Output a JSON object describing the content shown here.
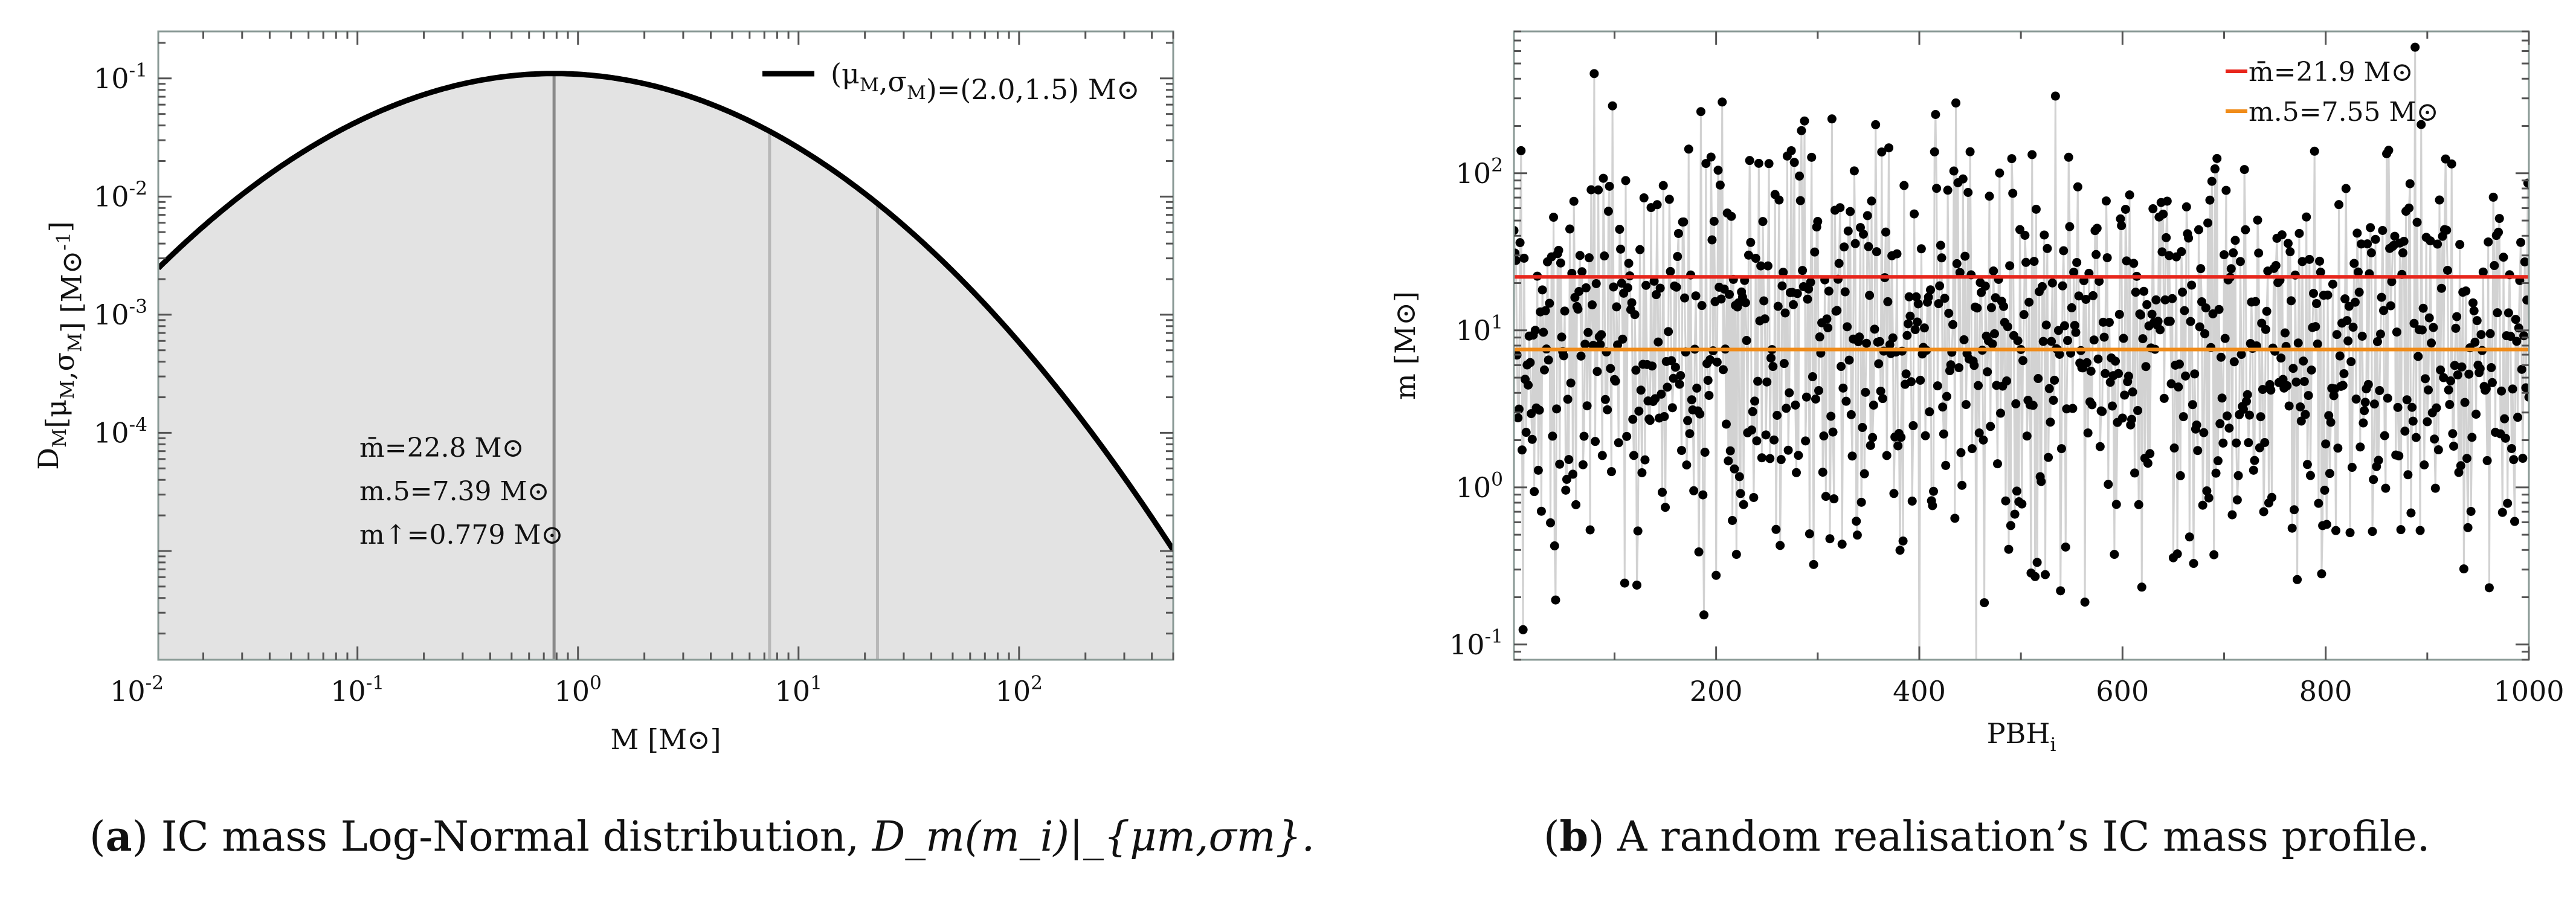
{
  "chart_data": [
    {
      "type": "area",
      "panel_label": "a",
      "caption": "IC mass Log-Normal distribution,",
      "caption_math": "D_m(m_i)|_{μm,σm}.",
      "xscale": "log",
      "yscale": "log",
      "xlim": [
        0.0125,
        500
      ],
      "ylim": [
        1.2e-06,
        0.25
      ],
      "xlabel": "M [M⊙]",
      "ylabel": "D_M[μ_M,σ_M] [M⊙^-1]",
      "xticks": [
        0.01,
        0.1,
        1,
        10,
        100
      ],
      "xtick_labels": [
        "10^-2",
        "10^-1",
        "10^0",
        "10^1",
        "10^2"
      ],
      "yticks": [
        0.0001,
        0.001,
        0.01,
        0.1
      ],
      "ytick_labels": [
        "10^-4",
        "10^-3",
        "10^-2",
        "10^-1"
      ],
      "series": [
        {
          "name": "(μ_M,σ_M)=(2.0,1.5) M⊙",
          "mu": 2.0,
          "sigma": 1.5,
          "peak_x": 0.779,
          "peak_y": 0.11
        }
      ],
      "legend": {
        "label": "(μ_M,σ_M)=(2.0,1.5) M⊙",
        "location": "top-right"
      },
      "vlines": [
        0.779,
        7.39,
        22.8
      ],
      "annotations": [
        "m̄=22.8 M⊙",
        "m.5=7.39 M⊙",
        "m↑=0.779 M⊙"
      ]
    },
    {
      "type": "scatter",
      "panel_label": "b",
      "caption": "A random realisation’s IC mass profile.",
      "xscale": "linear",
      "yscale": "log",
      "xlim": [
        1,
        1000
      ],
      "ylim": [
        0.08,
        800
      ],
      "xlabel": "PBH_i",
      "ylabel": "m [M⊙]",
      "xticks": [
        200,
        400,
        600,
        800,
        1000
      ],
      "xtick_labels": [
        "200",
        "400",
        "600",
        "800",
        "1000"
      ],
      "yticks": [
        0.1,
        1,
        10,
        100
      ],
      "ytick_labels": [
        "10^-1",
        "10^0",
        "10^1",
        "10^2"
      ],
      "n_points": 1000,
      "distribution": {
        "name": "log-normal",
        "mu": 2.0,
        "sigma": 1.5
      },
      "hlines": [
        {
          "label": "m̄=21.9 M⊙",
          "value": 21.9,
          "color": "#e8261c"
        },
        {
          "label": "m.5=7.55 M⊙",
          "value": 7.55,
          "color": "#f08c1a"
        }
      ],
      "legend": {
        "location": "top-right"
      }
    }
  ]
}
